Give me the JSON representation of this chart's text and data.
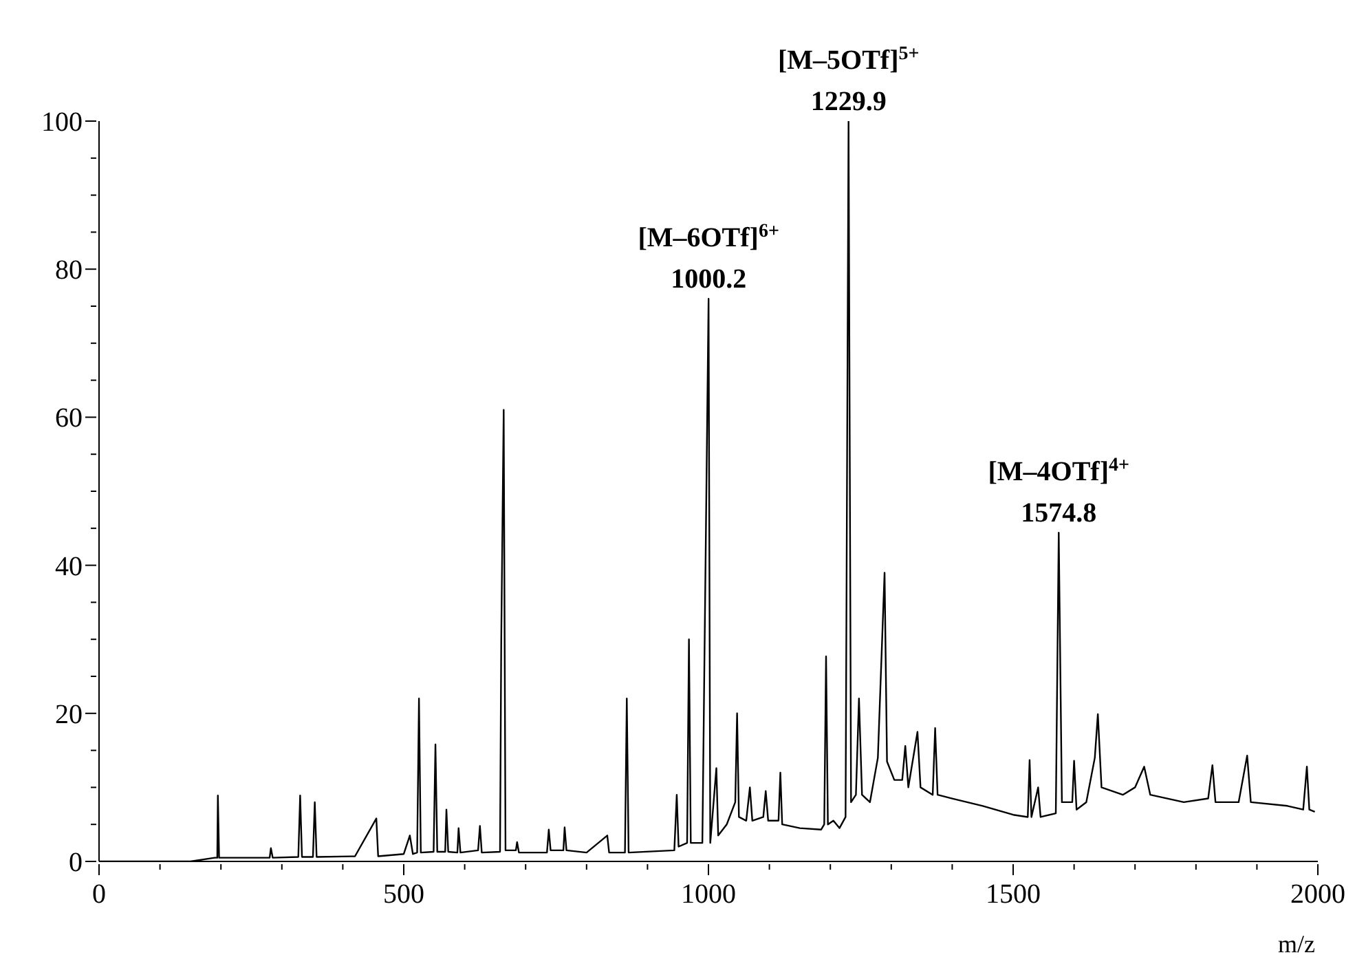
{
  "chart_data": {
    "type": "line",
    "xlabel": "m/z",
    "xlim": [
      0,
      2000
    ],
    "xticks": [
      0,
      {
        "value": 100,
        "label": null
      },
      {
        "value": 200,
        "label": null
      },
      {
        "value": 300,
        "label": null
      },
      {
        "value": 400,
        "label": null
      },
      500,
      {
        "value": 600,
        "label": null
      },
      {
        "value": 700,
        "label": null
      },
      {
        "value": 800,
        "label": null
      },
      {
        "value": 900,
        "label": null
      },
      1000,
      {
        "value": 1100,
        "label": null
      },
      {
        "value": 1200,
        "label": null
      },
      {
        "value": 1300,
        "label": null
      },
      {
        "value": 1400,
        "label": null
      },
      1500,
      {
        "value": 1600,
        "label": null
      },
      {
        "value": 1700,
        "label": null
      },
      {
        "value": 1800,
        "label": null
      },
      {
        "value": 1900,
        "label": null
      },
      2000
    ],
    "ylim": [
      0,
      100
    ],
    "yticks": [
      0,
      {
        "value": 5,
        "label": null
      },
      {
        "value": 10,
        "label": null
      },
      {
        "value": 15,
        "label": null
      },
      20,
      {
        "value": 25,
        "label": null
      },
      {
        "value": 30,
        "label": null
      },
      {
        "value": 35,
        "label": null
      },
      40,
      {
        "value": 45,
        "label": null
      },
      {
        "value": 50,
        "label": null
      },
      {
        "value": 55,
        "label": null
      },
      60,
      {
        "value": 65,
        "label": null
      },
      {
        "value": 70,
        "label": null
      },
      {
        "value": 75,
        "label": null
      },
      80,
      {
        "value": 85,
        "label": null
      },
      {
        "value": 90,
        "label": null
      },
      {
        "value": 95,
        "label": null
      },
      100
    ],
    "grid": false,
    "legend": false,
    "marker": "none",
    "line_style": "solid",
    "x": [
      0,
      150,
      190,
      194,
      195,
      197,
      280,
      282,
      285,
      327,
      330,
      333,
      351,
      354,
      357,
      420,
      455,
      458,
      500,
      510,
      515,
      522,
      525,
      528,
      549,
      552,
      555,
      568,
      570,
      573,
      588,
      590,
      593,
      622,
      625,
      628,
      658,
      660,
      664,
      667,
      684,
      686,
      689,
      735,
      738,
      741,
      762,
      764,
      767,
      800,
      834,
      837,
      863,
      866,
      869,
      944,
      948,
      951,
      965,
      968,
      971,
      990,
      1000.2,
      1003,
      1013,
      1016,
      1030,
      1044,
      1047,
      1050,
      1062,
      1068,
      1072,
      1090,
      1094,
      1098,
      1115,
      1118,
      1121,
      1150,
      1185,
      1190,
      1193,
      1196,
      1205,
      1215,
      1225,
      1229.9,
      1234,
      1242,
      1247,
      1252,
      1265,
      1278,
      1289,
      1293,
      1305,
      1318,
      1323,
      1328,
      1343,
      1348,
      1368,
      1372,
      1376,
      1400,
      1450,
      1500,
      1524,
      1527,
      1530,
      1541,
      1545,
      1570,
      1574.8,
      1580,
      1597,
      1600,
      1604,
      1620,
      1634,
      1639,
      1645,
      1680,
      1700,
      1715,
      1725,
      1780,
      1820,
      1827,
      1832,
      1870,
      1884,
      1890,
      1950,
      1976,
      1982,
      1986,
      1995
    ],
    "series": [
      {
        "color": "#000000",
        "values": [
          0,
          0,
          0.5,
          0.5,
          8.9,
          0.5,
          0.5,
          1.8,
          0.5,
          0.6,
          8.9,
          0.6,
          0.6,
          8,
          0.6,
          0.7,
          5.8,
          0.7,
          1,
          3.5,
          1,
          1.2,
          22,
          1.2,
          1.3,
          15.8,
          1.3,
          1.3,
          7,
          1.3,
          1.2,
          4.5,
          1.2,
          1.5,
          4.8,
          1.2,
          1.3,
          30,
          61,
          1.5,
          1.5,
          2.6,
          1.2,
          1.2,
          4.3,
          1.5,
          1.5,
          4.6,
          1.5,
          1.2,
          3.5,
          1.2,
          1.2,
          22,
          1.2,
          1.5,
          9,
          2,
          2.5,
          30,
          2.5,
          2.5,
          76,
          2.5,
          12.6,
          3.5,
          5,
          8,
          20,
          6,
          5.5,
          10,
          5.5,
          6,
          9.5,
          5.5,
          5.5,
          12,
          5,
          4.5,
          4.3,
          5,
          27.7,
          5,
          5.5,
          4.5,
          6,
          100,
          8,
          9,
          22,
          9,
          8,
          14,
          39,
          13.5,
          11,
          11,
          15.6,
          10,
          17.5,
          10,
          9,
          18,
          9,
          8.5,
          7.5,
          6.3,
          6,
          13.7,
          6,
          10,
          6,
          6.5,
          44.4,
          8,
          8,
          13.6,
          7,
          8,
          14,
          19.9,
          10,
          9,
          10,
          12.8,
          9,
          8,
          8.5,
          13,
          8,
          8,
          14.3,
          8,
          7.5,
          7,
          12.8,
          7,
          6.7
        ]
      }
    ],
    "annotations": [
      {
        "text": "[M–6OTf]$^{6+}$",
        "x": 1000.2,
        "y": 76
      },
      {
        "text": "1000.2",
        "x": 1000.2,
        "y": 76
      },
      {
        "text": "[M–5OTf]$^{5+}$",
        "x": 1229.9,
        "y": 100
      },
      {
        "text": "1229.9",
        "x": 1229.9,
        "y": 100
      },
      {
        "text": "[M–4OTf]$^{4+}$",
        "x": 1574.8,
        "y": 44.4
      },
      {
        "text": "1574.8",
        "x": 1574.8,
        "y": 44.4
      }
    ]
  }
}
